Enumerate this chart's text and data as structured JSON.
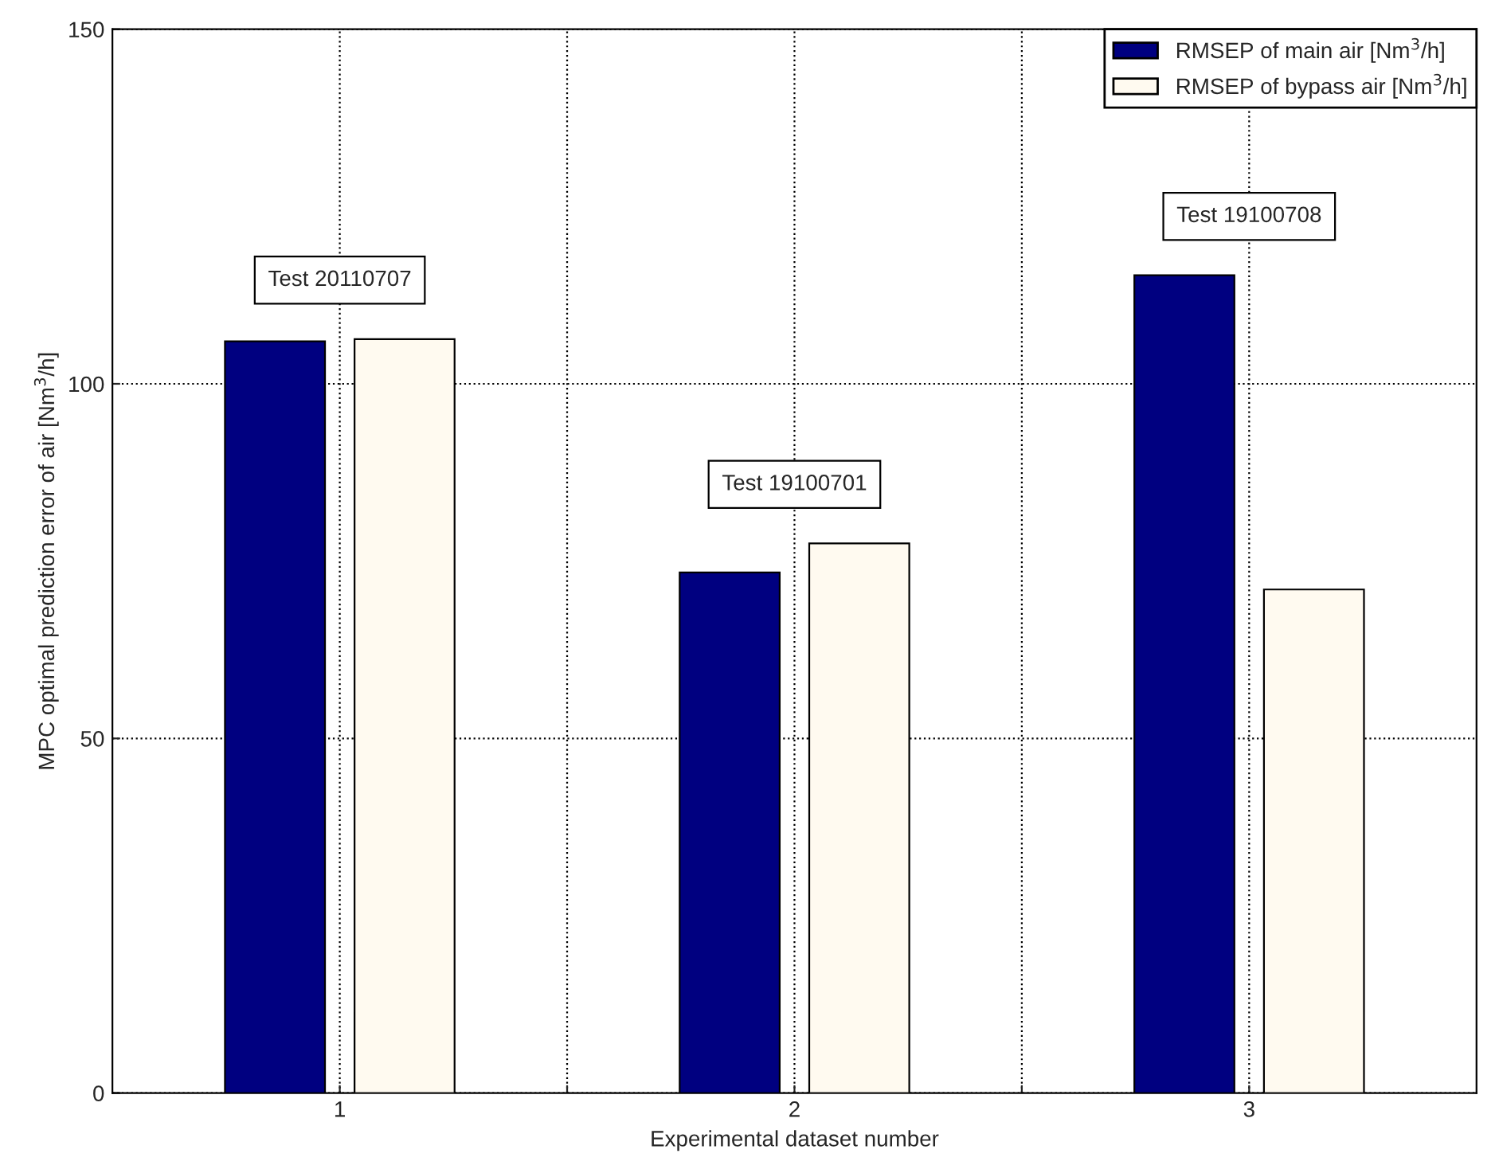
{
  "chart_data": {
    "type": "bar",
    "xlabel": "Experimental dataset number",
    "ylabel": "MPC optimal prediction error of air [Nm$^{3}$/h]",
    "x": [
      1,
      2,
      3
    ],
    "xlim": [
      0.5,
      3.5
    ],
    "xticks": [
      1,
      {
        "value": 1.5,
        "label": null
      },
      2,
      {
        "value": 2.5,
        "label": null
      },
      3
    ],
    "ylim": [
      0,
      150
    ],
    "yticks": [
      0,
      50,
      100,
      150
    ],
    "grid": true,
    "legend": "top right",
    "series": [
      {
        "name": "RMSEP of main air [Nm$^{3}$/h]",
        "color": "#000080",
        "values": [
          106,
          73.4,
          115.3
        ]
      },
      {
        "name": "RMSEP of bypass air [Nm$^{3}$/h]",
        "color": "#fffaf0",
        "values": [
          106.3,
          77.5,
          71
        ]
      }
    ],
    "annotations": [
      "Test 20110707",
      "Test 19100701",
      "Test 19100708"
    ]
  }
}
